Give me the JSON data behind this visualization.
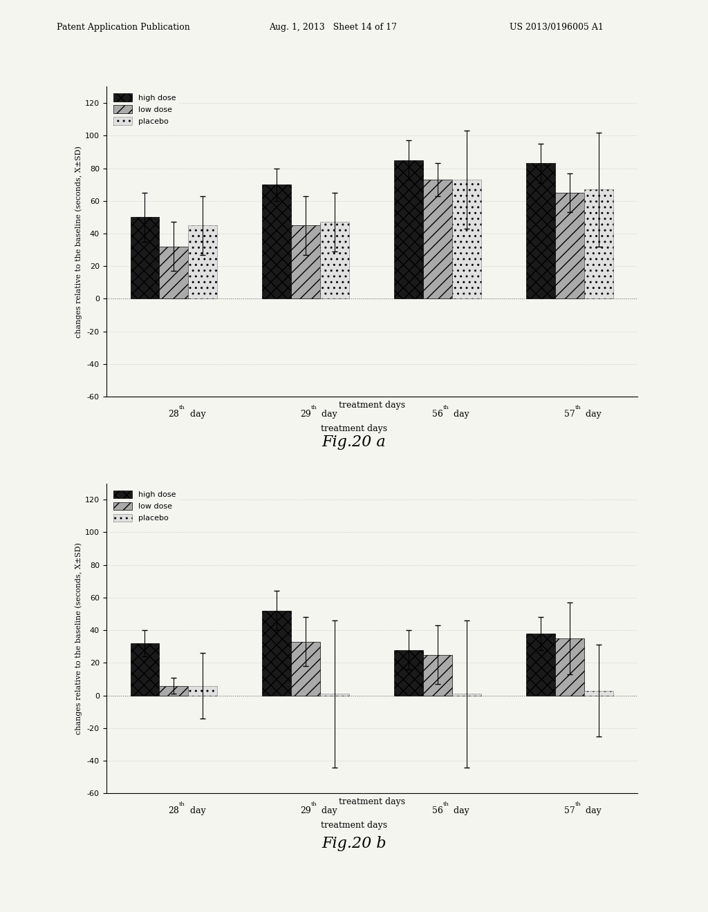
{
  "header_left": "Patent Application Publication",
  "header_mid": "Aug. 1, 2013   Sheet 14 of 17",
  "header_right": "US 2013/0196005 A1",
  "fig_a": {
    "title": "Fig.20 a",
    "ylabel": "changes relative to the baseline (seconds, X±SD)",
    "xlabel": "treatment days",
    "ylim": [
      -60,
      130
    ],
    "yticks": [
      -60,
      -40,
      -20,
      0,
      20,
      40,
      60,
      80,
      100,
      120
    ],
    "categories": [
      "28th day",
      "29th day",
      "56th day",
      "57th day"
    ],
    "high_dose": [
      50,
      70,
      85,
      83
    ],
    "low_dose": [
      32,
      45,
      73,
      65
    ],
    "placebo": [
      45,
      47,
      73,
      67
    ],
    "high_dose_err": [
      15,
      10,
      12,
      12
    ],
    "low_dose_err": [
      15,
      18,
      10,
      12
    ],
    "placebo_err": [
      18,
      18,
      30,
      35
    ],
    "legend": [
      "high dose",
      "low dose",
      "placebo"
    ]
  },
  "fig_b": {
    "title": "Fig.20 b",
    "ylabel": "changes relative to the baseline (seconds, X±SD)",
    "xlabel": "treatment days",
    "ylim": [
      -60,
      130
    ],
    "yticks": [
      -60,
      -40,
      -20,
      0,
      20,
      40,
      60,
      80,
      100,
      120
    ],
    "categories": [
      "28th day",
      "29th day",
      "56th day",
      "57th day"
    ],
    "high_dose": [
      32,
      52,
      28,
      38
    ],
    "low_dose": [
      6,
      33,
      25,
      35
    ],
    "placebo": [
      6,
      1,
      1,
      3
    ],
    "high_dose_err": [
      8,
      12,
      12,
      10
    ],
    "low_dose_err": [
      5,
      15,
      18,
      22
    ],
    "placebo_err": [
      20,
      45,
      45,
      28
    ],
    "legend": [
      "high dose",
      "low dose",
      "placebo"
    ]
  },
  "background_color": "#f5f5f0",
  "high_dose_color": "#1a1a1a",
  "low_dose_color": "#aaaaaa",
  "placebo_color": "#e0e0e0",
  "high_dose_hatch": "xx",
  "low_dose_hatch": "//",
  "placebo_hatch": ".."
}
